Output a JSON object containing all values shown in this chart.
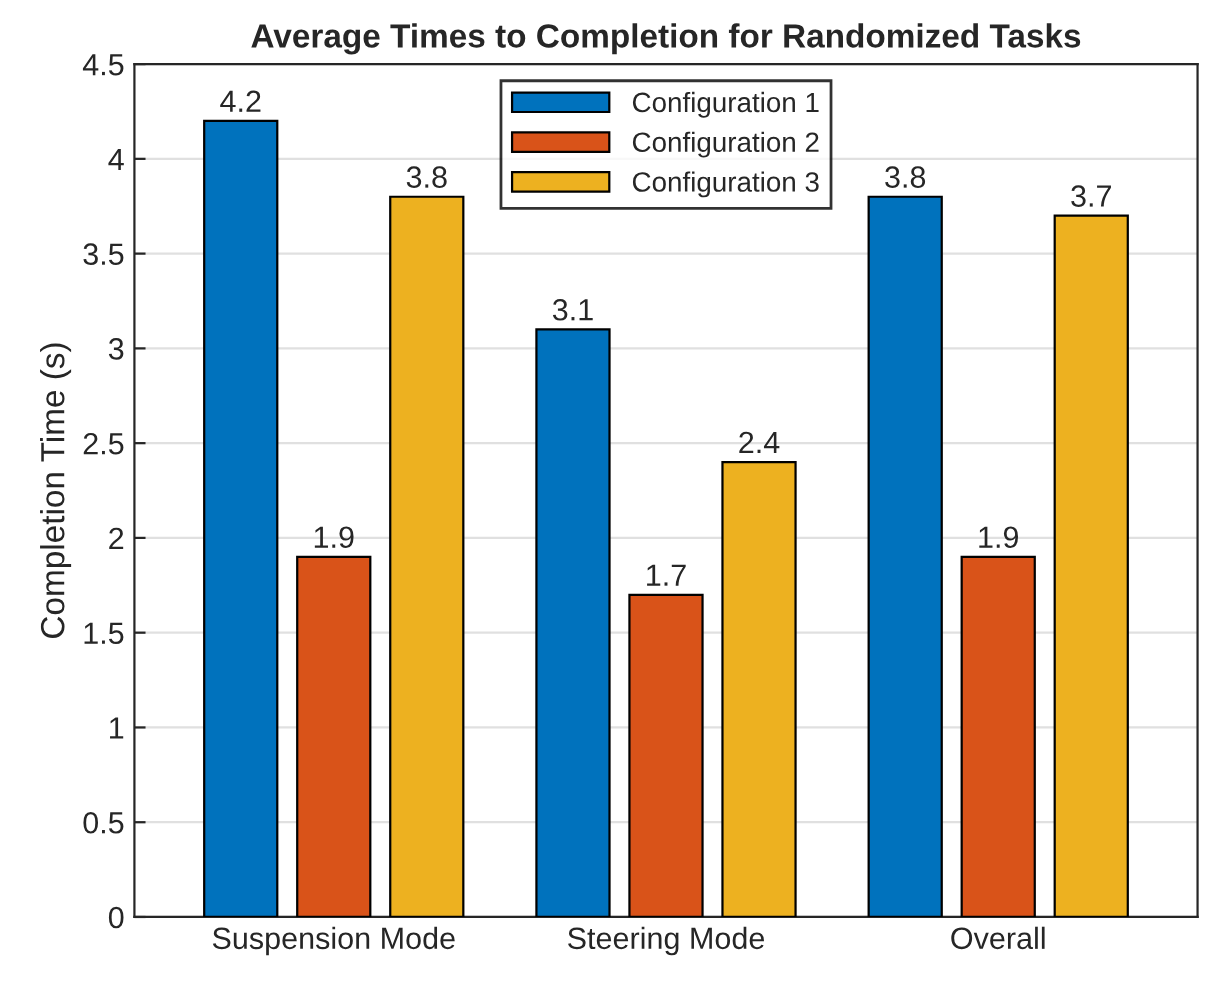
{
  "chart_data": {
    "type": "bar",
    "title": "Average Times to Completion for Randomized Tasks",
    "ylabel": "Completion Time (s)",
    "categories": [
      "Suspension Mode",
      "Steering Mode",
      "Overall"
    ],
    "series": [
      {
        "name": "Configuration 1",
        "color": "#0072bd",
        "values": [
          4.2,
          3.1,
          3.8
        ]
      },
      {
        "name": "Configuration 2",
        "color": "#d95319",
        "values": [
          1.9,
          1.7,
          1.9
        ]
      },
      {
        "name": "Configuration 3",
        "color": "#edb120",
        "values": [
          3.8,
          2.4,
          3.7
        ]
      }
    ],
    "ylim": [
      0,
      4.5
    ],
    "yticks": [
      0,
      0.5,
      1,
      1.5,
      2,
      2.5,
      3,
      3.5,
      4,
      4.5
    ],
    "grid": "y",
    "legend": "top",
    "data_labels": true
  }
}
